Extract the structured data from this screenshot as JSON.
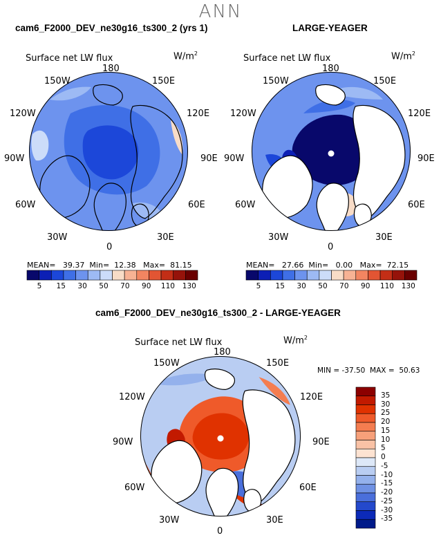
{
  "figure": {
    "title": "ANN",
    "panels": [
      {
        "title": "cam6_F2000_DEV_ne30g16_ts300_2 (yrs 1)",
        "variable": "Surface net LW flux",
        "units": "W/m",
        "units_sup": "2",
        "stats": {
          "mean_label": "MEAN=",
          "mean": "39.37",
          "min_label": "Min=",
          "min": "12.38",
          "max_label": "Max=",
          "max": "81.15"
        },
        "field": "model"
      },
      {
        "title": "LARGE-YEAGER",
        "variable": "Surface net LW flux",
        "units": "W/m",
        "units_sup": "2",
        "stats": {
          "mean_label": "MEAN=",
          "mean": "27.66",
          "min_label": "Min=",
          "min": "0.00",
          "max_label": "Max=",
          "max": "72.15"
        },
        "field": "obs"
      }
    ],
    "diff_panel": {
      "title": "cam6_F2000_DEV_ne30g16_ts300_2 - LARGE-YEAGER",
      "variable": "Surface net LW flux",
      "units": "W/m",
      "units_sup": "2",
      "min_label": "MIN =",
      "min": "-37.50",
      "max_label": "MAX =",
      "max": "50.63"
    },
    "lon_labels": [
      "180",
      "150E",
      "120E",
      "90E",
      "60E",
      "30E",
      "0",
      "30W",
      "60W",
      "90W",
      "120W",
      "150W"
    ],
    "colorbar_abs": {
      "ticks": [
        "5",
        "15",
        "30",
        "50",
        "70",
        "90",
        "110",
        "130"
      ],
      "colors": [
        "#08086b",
        "#0c1fb5",
        "#1c47d9",
        "#3f6fe6",
        "#6d93ee",
        "#9dbaf4",
        "#ccdcf9",
        "#f8dcc7",
        "#f7b294",
        "#f28561",
        "#e25533",
        "#c32e16",
        "#96130a",
        "#6a0000"
      ]
    },
    "colorbar_diff": {
      "ticks": [
        "35",
        "30",
        "25",
        "20",
        "15",
        "10",
        "5",
        "0",
        "-5",
        "-10",
        "-15",
        "-20",
        "-25",
        "-30",
        "-35"
      ],
      "colors": [
        "#8c0000",
        "#c21a00",
        "#e03200",
        "#ef5a2a",
        "#f47d50",
        "#f7a07a",
        "#f9c2a6",
        "#fde3d2",
        "#dde8f8",
        "#b9cdf2",
        "#94b1ec",
        "#6f91e4",
        "#4a6fdb",
        "#2449cc",
        "#0c2ab8",
        "#001a8a"
      ]
    },
    "colors": {
      "land": "#ffffff",
      "coast": "#000000"
    }
  }
}
